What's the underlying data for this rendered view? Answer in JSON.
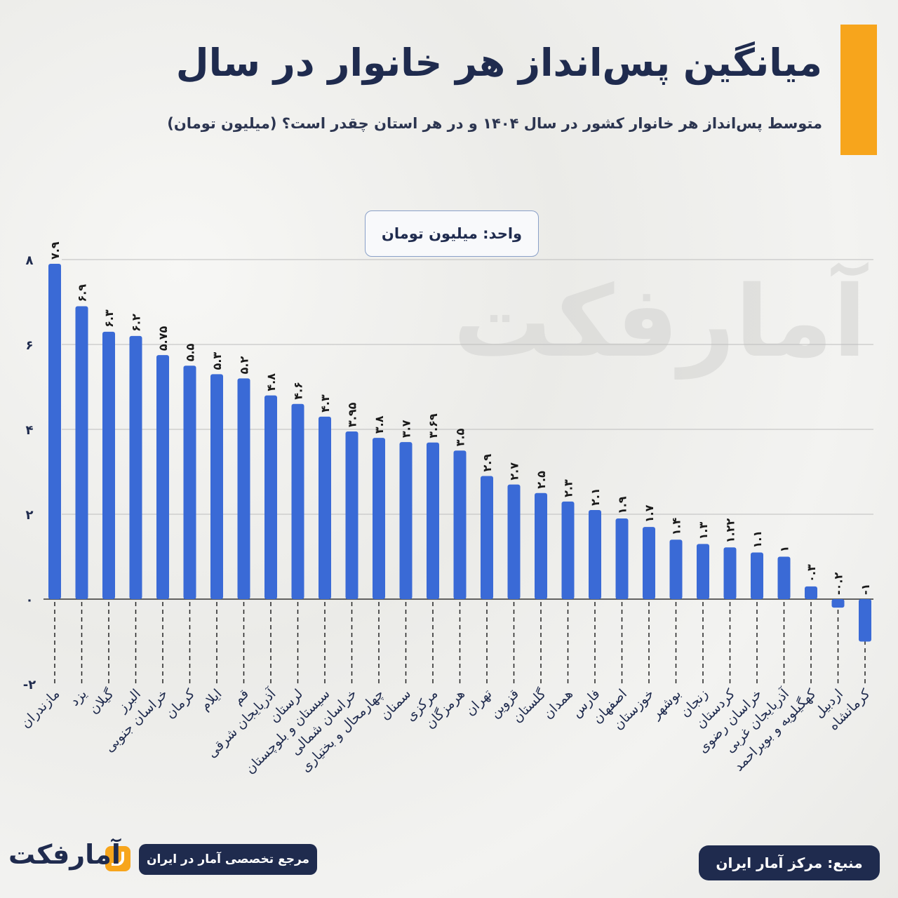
{
  "header": {
    "title": "میانگین پس‌انداز هر خانوار در سال",
    "subtitle": "متوسط پس‌انداز هر خانوار کشور در سال ۱۴۰۴ و در هر استان چقدر است؟ (میلیون تومان)",
    "accent_color": "#f7a51c"
  },
  "unit_label": "واحد: میلیون تومان",
  "watermark": "آمارفکت",
  "footer": {
    "source": "منبع: مرکز آمار ایران",
    "tagline": "مرجع تخصصی آمار در ایران",
    "logo": "آمارفکت"
  },
  "chart_data": {
    "type": "bar",
    "bar_color": "#3a6ad6",
    "ylim": [
      -2,
      8
    ],
    "yticks": [
      8,
      6,
      4,
      2,
      0,
      -2
    ],
    "ytick_labels": [
      "۸",
      "۶",
      "۴",
      "۲",
      "۰",
      "-۲"
    ],
    "grid": true,
    "categories": [
      "مازندران",
      "یزد",
      "گیلان",
      "البرز",
      "خراسان جنوبی",
      "کرمان",
      "ایلام",
      "قم",
      "آذربایجان شرقی",
      "لرستان",
      "سیستان و بلوچستان",
      "خراسان شمالی",
      "چهارمحال و بختیاری",
      "سمنان",
      "مرکزی",
      "هرمزگان",
      "تهران",
      "قزوین",
      "گلستان",
      "همدان",
      "فارس",
      "اصفهان",
      "خوزستان",
      "بوشهر",
      "زنجان",
      "کردستان",
      "خراسان رضوی",
      "آذربایجان غربی",
      "کهگیلویه و بویراحمد",
      "اردبیل",
      "کرمانشاه"
    ],
    "values": [
      7.9,
      6.9,
      6.3,
      6.2,
      5.75,
      5.5,
      5.3,
      5.2,
      4.8,
      4.6,
      4.3,
      3.95,
      3.8,
      3.7,
      3.69,
      3.5,
      2.9,
      2.7,
      2.5,
      2.3,
      2.1,
      1.9,
      1.7,
      1.4,
      1.3,
      1.22,
      1.1,
      1,
      0.3,
      -0.2,
      -1
    ],
    "value_labels": [
      "۷.۹",
      "۶.۹",
      "۶.۳",
      "۶.۲",
      "۵.۷۵",
      "۵.۵",
      "۵.۳",
      "۵.۲",
      "۴.۸",
      "۴.۶",
      "۴.۳",
      "۳.۹۵",
      "۳.۸",
      "۳.۷",
      "۳.۶۹",
      "۳.۵",
      "۲.۹",
      "۲.۷",
      "۲.۵",
      "۲.۳",
      "۲.۱",
      "۱.۹",
      "۱.۷",
      "۱.۴",
      "۱.۳",
      "۱.۲۲",
      "۱.۱",
      "۱",
      "۰.۳",
      "-۰.۲",
      "-۱"
    ]
  }
}
